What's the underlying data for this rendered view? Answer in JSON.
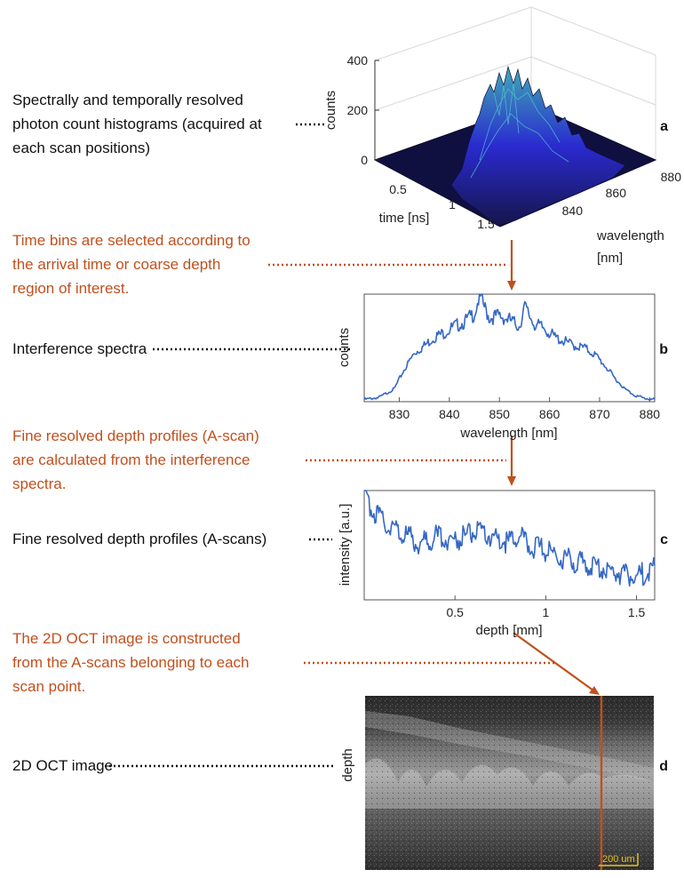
{
  "descriptions": {
    "a": [
      "Spectrally and temporally resolved",
      "photon count histograms (acquired at",
      "each scan positions)"
    ],
    "b": [
      "Interference spectra"
    ],
    "c": [
      "Fine resolved depth profiles (A-scans)"
    ],
    "d": [
      "2D OCT image"
    ]
  },
  "steps": {
    "s1": [
      "Time bins are selected according to",
      "the arrival time or coarse depth",
      "region of interest."
    ],
    "s2": [
      "Fine resolved depth profiles (A-scan)",
      "are calculated from the interference",
      "spectra."
    ],
    "s3": [
      "The 2D OCT image is constructed",
      "from the A-scans belonging to each",
      "scan point."
    ]
  },
  "panel_labels": {
    "a": "a",
    "b": "b",
    "c": "c",
    "d": "d"
  },
  "plot_a": {
    "zlabel": "counts",
    "z_ticks": [
      "400",
      "200",
      "0"
    ],
    "time_label": "time [ns]",
    "time_ticks": [
      "0.5",
      "1",
      "1.5"
    ],
    "wavelength_label_1": "wavelength",
    "wavelength_label_2": "[nm]",
    "wavelength_ticks": [
      "880",
      "860",
      "840"
    ]
  },
  "plot_b": {
    "ylabel": "counts",
    "xlabel": "wavelength [nm]"
  },
  "plot_c": {
    "ylabel": "intensity [a.u.]",
    "xlabel": "depth [mm]"
  },
  "plot_d": {
    "ylabel": "depth",
    "scalebar": "200 um"
  },
  "colors": {
    "annotation": "#c1501d",
    "trace": "#3568c4",
    "surface": "#2a2ad0"
  },
  "chart_data": [
    {
      "type": "line",
      "title": "",
      "xlabel": "wavelength [nm]",
      "ylabel": "counts",
      "xlim": [
        823,
        881
      ],
      "x_ticks": [
        830,
        840,
        850,
        860,
        870,
        880
      ],
      "x": [
        823,
        826,
        829,
        831,
        833,
        835,
        837,
        839,
        841,
        843,
        845,
        846,
        848,
        850,
        852,
        854,
        855,
        857,
        859,
        861,
        863,
        865,
        867,
        869,
        871,
        873,
        875,
        877,
        879,
        881
      ],
      "values": [
        0.02,
        0.04,
        0.12,
        0.3,
        0.45,
        0.52,
        0.6,
        0.64,
        0.7,
        0.74,
        0.82,
        0.98,
        0.78,
        0.8,
        0.76,
        0.7,
        0.88,
        0.72,
        0.68,
        0.6,
        0.56,
        0.52,
        0.5,
        0.44,
        0.34,
        0.22,
        0.12,
        0.06,
        0.03,
        0.02
      ]
    },
    {
      "type": "line",
      "title": "",
      "xlabel": "depth [mm]",
      "ylabel": "intensity [a.u.]",
      "xlim": [
        0,
        1.6
      ],
      "x_ticks": [
        0.5,
        1,
        1.5
      ],
      "x": [
        0.0,
        0.05,
        0.1,
        0.2,
        0.3,
        0.4,
        0.5,
        0.6,
        0.7,
        0.8,
        0.85,
        0.9,
        1.0,
        1.1,
        1.2,
        1.3,
        1.4,
        1.5,
        1.6
      ],
      "values": [
        0.95,
        0.82,
        0.72,
        0.62,
        0.52,
        0.58,
        0.55,
        0.62,
        0.58,
        0.52,
        0.6,
        0.5,
        0.45,
        0.38,
        0.33,
        0.3,
        0.25,
        0.22,
        0.28
      ]
    }
  ]
}
